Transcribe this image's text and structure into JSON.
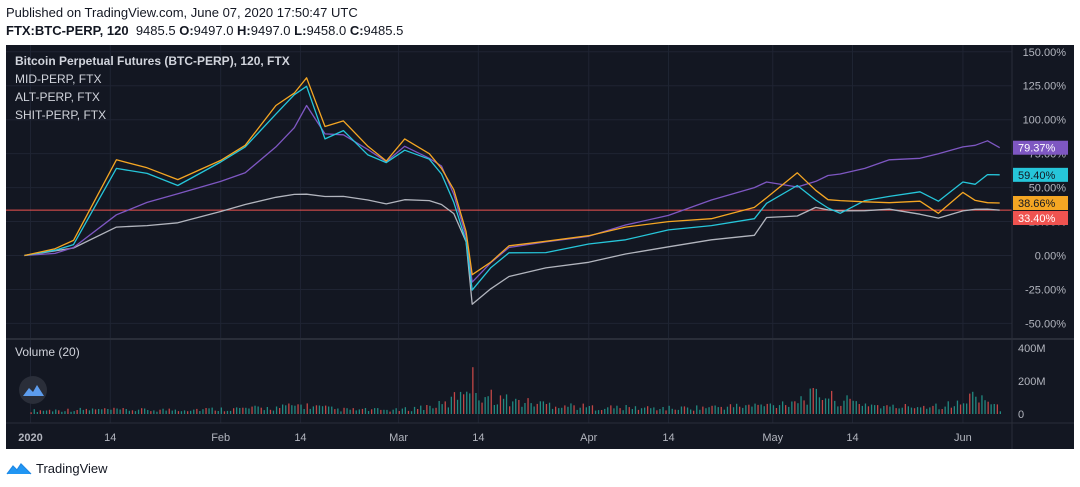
{
  "header": {
    "published": "Published on TradingView.com, June 07, 2020 17:50:47 UTC",
    "symbol": "FTX:BTC-PERP, 120",
    "last": "9485.5",
    "open_label": "O:",
    "open": "9497.0",
    "high_label": "H:",
    "high": "9497.0",
    "low_label": "L:",
    "low": "9458.0",
    "close_label": "C:",
    "close": "9485.5"
  },
  "footer": {
    "brand": "TradingView"
  },
  "chart_data": {
    "type": "line",
    "title": "Bitcoin Perpetual Futures (BTC-PERP), 120, FTX",
    "legend_position": "top-left",
    "price_scale": "percent",
    "ylim": [
      -60,
      155
    ],
    "y_ticks": [
      "150.00%",
      "125.00%",
      "100.00%",
      "75.00%",
      "50.00%",
      "25.00%",
      "0.00%",
      "-25.00%",
      "-50.00%"
    ],
    "y_tick_values": [
      150,
      125,
      100,
      75,
      50,
      25,
      0,
      -25,
      -50
    ],
    "x_ticks": [
      "2020",
      "14",
      "Feb",
      "14",
      "Mar",
      "14",
      "Apr",
      "14",
      "May",
      "14",
      "Jun"
    ],
    "x_tick_dates": [
      "2020-01-01",
      "2020-01-14",
      "2020-02-01",
      "2020-02-14",
      "2020-03-01",
      "2020-03-14",
      "2020-04-01",
      "2020-04-14",
      "2020-05-01",
      "2020-05-14",
      "2020-06-01"
    ],
    "grid": true,
    "reference_line": {
      "value": 33.4,
      "color": "#ef5350"
    },
    "x_dates": [
      "2019-12-31",
      "2020-01-05",
      "2020-01-08",
      "2020-01-15",
      "2020-01-20",
      "2020-01-25",
      "2020-02-01",
      "2020-02-05",
      "2020-02-10",
      "2020-02-13",
      "2020-02-15",
      "2020-02-18",
      "2020-02-21",
      "2020-02-25",
      "2020-02-28",
      "2020-03-02",
      "2020-03-06",
      "2020-03-08",
      "2020-03-10",
      "2020-03-12",
      "2020-03-13",
      "2020-03-16",
      "2020-03-19",
      "2020-03-25",
      "2020-04-01",
      "2020-04-07",
      "2020-04-14",
      "2020-04-21",
      "2020-04-28",
      "2020-04-30",
      "2020-05-05",
      "2020-05-08",
      "2020-05-10",
      "2020-05-12",
      "2020-05-16",
      "2020-05-20",
      "2020-05-25",
      "2020-05-28",
      "2020-06-01",
      "2020-06-03",
      "2020-06-05",
      "2020-06-07"
    ],
    "series": [
      {
        "name": "Bitcoin Perpetual Futures (BTC-PERP), 120, FTX",
        "color": "#f5a623",
        "last_label": "38.66%",
        "values": [
          0,
          5,
          12,
          70,
          65,
          55,
          70,
          82,
          110,
          120,
          130,
          95,
          100,
          80,
          70,
          85,
          75,
          65,
          48,
          18,
          -15,
          -5,
          8,
          10,
          15,
          20,
          25,
          28,
          35,
          43,
          60,
          48,
          42,
          40,
          40,
          38,
          40,
          32,
          46,
          41,
          38,
          38.66
        ]
      },
      {
        "name": "MID-PERP, FTX",
        "color": "#26c6da",
        "last_label": "59.40%",
        "values": [
          0,
          3,
          8,
          65,
          60,
          52,
          68,
          80,
          105,
          118,
          125,
          85,
          92,
          75,
          68,
          78,
          70,
          60,
          40,
          10,
          -25,
          -10,
          2,
          3,
          8,
          12,
          18,
          22,
          28,
          38,
          52,
          40,
          35,
          32,
          40,
          44,
          46,
          40,
          55,
          52,
          60,
          59.4
        ]
      },
      {
        "name": "ALT-PERP, FTX",
        "color": "#7e57c2",
        "last_label": "79.37%",
        "values": [
          0,
          2,
          5,
          30,
          40,
          45,
          55,
          60,
          80,
          95,
          110,
          90,
          88,
          78,
          70,
          80,
          72,
          65,
          45,
          15,
          -20,
          -5,
          5,
          10,
          15,
          22,
          30,
          40,
          50,
          55,
          50,
          55,
          58,
          60,
          65,
          70,
          72,
          74,
          80,
          82,
          84,
          79.37
        ]
      },
      {
        "name": "SHIT-PERP, FTX",
        "color": "#b2b5be",
        "last_label": "33.40%",
        "values": [
          0,
          3,
          6,
          20,
          22,
          25,
          32,
          38,
          42,
          45,
          46,
          43,
          44,
          40,
          38,
          42,
          40,
          38,
          30,
          10,
          -35,
          -25,
          -15,
          -10,
          -5,
          2,
          6,
          12,
          14,
          28,
          30,
          35,
          34,
          32,
          33,
          35,
          30,
          28,
          32,
          34,
          35,
          33.4
        ]
      }
    ],
    "volume": {
      "name": "Volume (20)",
      "ylim": [
        0,
        400
      ],
      "unit": "M",
      "y_ticks": [
        "400M",
        "200M",
        "0"
      ],
      "y_tick_values": [
        400,
        200,
        0
      ],
      "x_dates": [
        "2020-01-01",
        "2020-01-10",
        "2020-01-20",
        "2020-02-01",
        "2020-02-10",
        "2020-02-14",
        "2020-02-20",
        "2020-03-01",
        "2020-03-09",
        "2020-03-12",
        "2020-03-13",
        "2020-03-14",
        "2020-03-20",
        "2020-04-01",
        "2020-04-15",
        "2020-05-01",
        "2020-05-09",
        "2020-05-11",
        "2020-05-20",
        "2020-06-01",
        "2020-06-03",
        "2020-06-07"
      ],
      "values": [
        30,
        40,
        35,
        45,
        55,
        80,
        40,
        35,
        90,
        270,
        300,
        180,
        110,
        60,
        50,
        80,
        180,
        130,
        60,
        90,
        200,
        40
      ],
      "up_color": "#26a69a",
      "down_color": "#ef5350"
    }
  }
}
